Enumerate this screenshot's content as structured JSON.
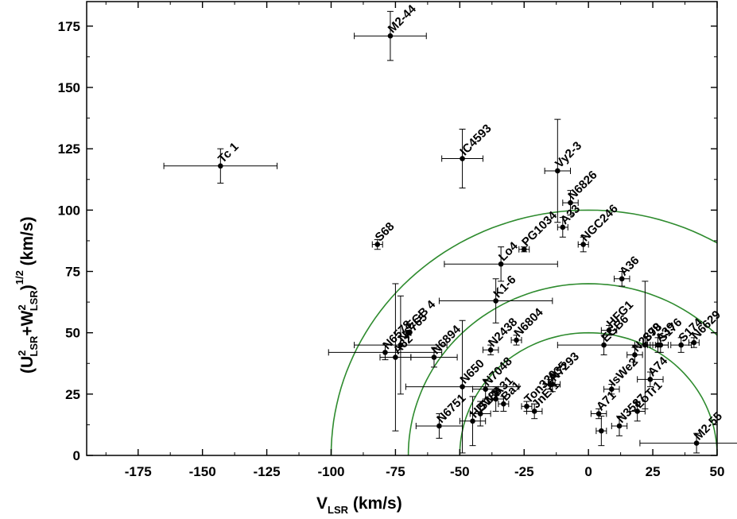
{
  "chart_data": {
    "type": "scatter",
    "title": "",
    "xlabel": {
      "main": "V",
      "sub": "LSR",
      "unit": " (km/s)"
    },
    "ylabel": {
      "open": "(U",
      "sup1": "2",
      "sub1": "LSR",
      "plus": "+W",
      "sup2": "2",
      "sub2": "LSR",
      "close": ")",
      "sup3": "1/2",
      "unit": " (km/s)"
    },
    "xlim": [
      -195,
      50
    ],
    "ylim": [
      0,
      185
    ],
    "xticks": [
      -175,
      -150,
      -125,
      -100,
      -75,
      -50,
      -25,
      0,
      25,
      50
    ],
    "yticks": [
      0,
      25,
      50,
      75,
      100,
      125,
      150,
      175
    ],
    "circles": [
      {
        "center": [
          0,
          0
        ],
        "radius": 100,
        "color": "#2e8b2e"
      },
      {
        "center": [
          0,
          0
        ],
        "radius": 70,
        "color": "#2e8b2e"
      },
      {
        "center": [
          0,
          0
        ],
        "radius": 50,
        "color": "#2e8b2e"
      }
    ],
    "points": [
      {
        "name": "M2-44",
        "x": -77,
        "y": 171,
        "xerr": 14,
        "yerr": 10
      },
      {
        "name": "Tc 1",
        "x": -143,
        "y": 118,
        "xerr": 22,
        "yerr": 7
      },
      {
        "name": "IC4593",
        "x": -49,
        "y": 121,
        "xerr": 8,
        "yerr": 12
      },
      {
        "name": "Vy2-3",
        "x": -12,
        "y": 116,
        "xerr": 5,
        "yerr": 21
      },
      {
        "name": "N6826",
        "x": -7,
        "y": 103,
        "xerr": 3,
        "yerr": 5
      },
      {
        "name": "A33",
        "x": -10,
        "y": 93,
        "xerr": 2,
        "yerr": 4
      },
      {
        "name": "PG1034",
        "x": -25,
        "y": 84,
        "xerr": 2,
        "yerr": 1
      },
      {
        "name": "NGC246",
        "x": -2,
        "y": 86,
        "xerr": 2,
        "yerr": 3
      },
      {
        "name": "S68",
        "x": -82,
        "y": 86,
        "xerr": 2,
        "yerr": 2
      },
      {
        "name": "Lo4",
        "x": -34,
        "y": 78,
        "xerr": 22,
        "yerr": 7
      },
      {
        "name": "A36",
        "x": 13,
        "y": 72,
        "xerr": 3,
        "yerr": 3
      },
      {
        "name": "K1-6",
        "x": -36,
        "y": 63,
        "xerr": 22,
        "yerr": 9
      },
      {
        "name": "EGB 4",
        "x": -70,
        "y": 50,
        "xerr": 1,
        "yerr": 1
      },
      {
        "name": "N6578",
        "x": -79,
        "y": 42,
        "xerr": 22,
        "yerr": 3
      },
      {
        "name": "N6765",
        "x": -73,
        "y": 45,
        "xerr": 18,
        "yerr": 20
      },
      {
        "name": "A62",
        "x": -75,
        "y": 40,
        "xerr": 6,
        "yerr": 30
      },
      {
        "name": "N6894",
        "x": -60,
        "y": 40,
        "xerr": 9,
        "yerr": 4
      },
      {
        "name": "N6804",
        "x": -28,
        "y": 47,
        "xerr": 2,
        "yerr": 2
      },
      {
        "name": "N2438",
        "x": -38,
        "y": 43,
        "xerr": 3,
        "yerr": 2
      },
      {
        "name": "N650",
        "x": -49,
        "y": 28,
        "xerr": 22,
        "yerr": 27
      },
      {
        "name": "N7048",
        "x": -40,
        "y": 27,
        "xerr": 5,
        "yerr": 4
      },
      {
        "name": "A31",
        "x": -36,
        "y": 23,
        "xerr": 3,
        "yerr": 5
      },
      {
        "name": "N7293",
        "x": -14,
        "y": 29,
        "xerr": 3,
        "yerr": 3
      },
      {
        "name": "Ton320",
        "x": -24,
        "y": 20,
        "xerr": 2,
        "yerr": 2
      },
      {
        "name": "JnEr1",
        "x": -21,
        "y": 18,
        "xerr": 3,
        "yerr": 3
      },
      {
        "name": "Ba1",
        "x": -33,
        "y": 21,
        "xerr": 2,
        "yerr": 3
      },
      {
        "name": "N6751",
        "x": -58,
        "y": 12,
        "xerr": 9,
        "yerr": 5
      },
      {
        "name": "S188",
        "x": -42,
        "y": 17,
        "xerr": 4,
        "yerr": 5
      },
      {
        "name": "HDW1",
        "x": -45,
        "y": 14,
        "xerr": 5,
        "yerr": 10
      },
      {
        "name": "A35",
        "x": -15,
        "y": 29,
        "xerr": 2,
        "yerr": 2
      },
      {
        "name": "HFG1",
        "x": 8,
        "y": 51,
        "xerr": 3,
        "yerr": 2
      },
      {
        "name": "EGB6",
        "x": 6,
        "y": 45,
        "xerr": 18,
        "yerr": 4
      },
      {
        "name": "S176",
        "x": 28,
        "y": 45,
        "xerr": 3,
        "yerr": 3
      },
      {
        "name": "S78",
        "x": 22,
        "y": 45,
        "xerr": 4,
        "yerr": 26
      },
      {
        "name": "A39",
        "x": 27,
        "y": 45,
        "xerr": 4,
        "yerr": 3
      },
      {
        "name": "S174",
        "x": 36,
        "y": 45,
        "xerr": 4,
        "yerr": 3
      },
      {
        "name": "N6629",
        "x": 41,
        "y": 46,
        "xerr": 2,
        "yerr": 2
      },
      {
        "name": "N2899",
        "x": 18,
        "y": 41,
        "xerr": 3,
        "yerr": 3
      },
      {
        "name": "A74",
        "x": 24,
        "y": 31,
        "xerr": 5,
        "yerr": 3
      },
      {
        "name": "IsWe2",
        "x": 9,
        "y": 27,
        "xerr": 3,
        "yerr": 2
      },
      {
        "name": "LoTr1",
        "x": 19,
        "y": 18,
        "xerr": 3,
        "yerr": 4
      },
      {
        "name": "A71",
        "x": 4,
        "y": 17,
        "xerr": 3,
        "yerr": 2
      },
      {
        "name": "N3587",
        "x": 12,
        "y": 12,
        "xerr": 3,
        "yerr": 4
      },
      {
        "name": "M2-55",
        "x": 42,
        "y": 5,
        "xerr": 22,
        "yerr": 4
      },
      {
        "name": "",
        "x": 5,
        "y": 10,
        "xerr": 2,
        "yerr": 6
      }
    ]
  }
}
